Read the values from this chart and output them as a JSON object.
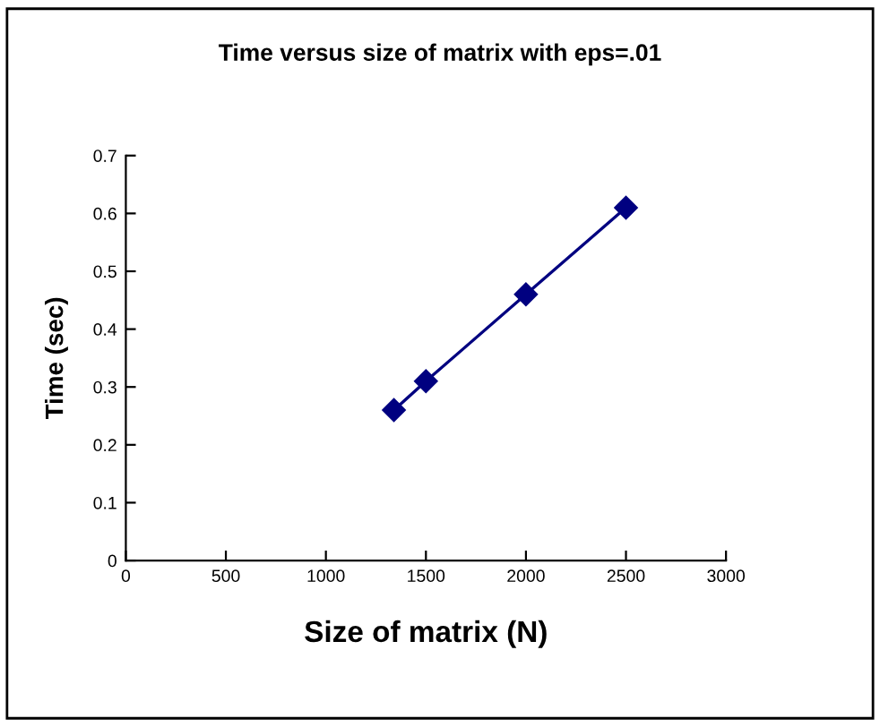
{
  "chart_data": {
    "type": "line",
    "title": "Time versus size of matrix with eps=.01",
    "xlabel": "Size of matrix (N)",
    "ylabel": "Time (sec)",
    "x": [
      1340,
      1500,
      2000,
      2500
    ],
    "series": [
      {
        "color": "#000080",
        "values": [
          0.26,
          0.31,
          0.46,
          0.61
        ]
      }
    ],
    "xlim": [
      0,
      3000
    ],
    "xticks": [
      0,
      500,
      1000,
      1500,
      2000,
      2500,
      3000
    ],
    "ylim": [
      0,
      0.7
    ],
    "yticks": [
      0,
      0.1,
      0.2,
      0.3,
      0.4,
      0.5,
      0.6,
      0.7
    ],
    "marker": "diamond",
    "line_style": "solid",
    "grid": false,
    "legend": false
  }
}
